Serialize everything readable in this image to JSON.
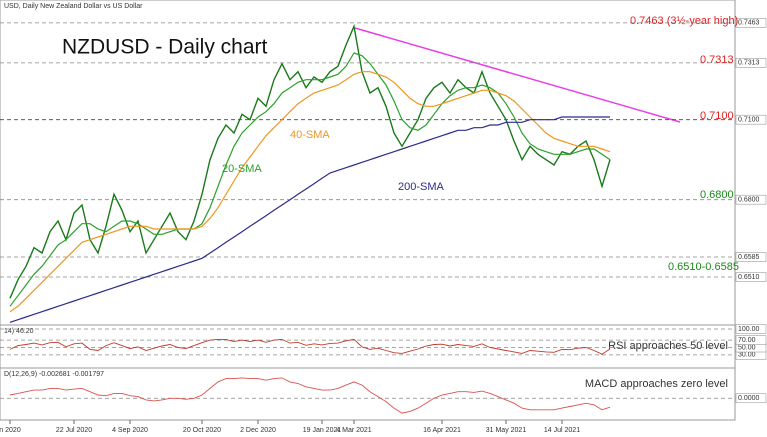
{
  "header": "USD, Daily  New Zealand Dollar vs US Dollar",
  "chart_data": [
    {
      "type": "line",
      "title": "NZDUSD - Daily chart",
      "categories": [
        "n 2020",
        null,
        null,
        null,
        null,
        null,
        null,
        null,
        "22 Jul 2020",
        null,
        null,
        null,
        null,
        null,
        null,
        "4 Sep 2020",
        null,
        null,
        null,
        null,
        null,
        null,
        null,
        null,
        "20 Oct 2020",
        null,
        null,
        null,
        null,
        null,
        null,
        "2 Dec 2020",
        null,
        null,
        null,
        null,
        null,
        null,
        null,
        "19 Jan 2021",
        null,
        null,
        null,
        "4 Mar 2021",
        null,
        null,
        null,
        null,
        null,
        null,
        null,
        null,
        null,
        null,
        "16 Apr 2021",
        null,
        null,
        null,
        null,
        null,
        null,
        null,
        "31 May 2021",
        null,
        null,
        null,
        null,
        null,
        null,
        "14 Jul 2021",
        null,
        null,
        null,
        null,
        null,
        null
      ],
      "series": [
        {
          "name": "NZDUSD",
          "color": "#1a7a1a",
          "values": [
            0.643,
            0.65,
            0.655,
            0.662,
            0.66,
            0.668,
            0.672,
            0.665,
            0.675,
            0.678,
            0.665,
            0.66,
            0.67,
            0.682,
            0.676,
            0.668,
            0.672,
            0.66,
            0.665,
            0.67,
            0.675,
            0.668,
            0.665,
            0.672,
            0.682,
            0.695,
            0.703,
            0.708,
            0.705,
            0.712,
            0.71,
            0.718,
            0.715,
            0.725,
            0.731,
            0.725,
            0.728,
            0.722,
            0.726,
            0.724,
            0.728,
            0.73,
            0.738,
            0.745,
            0.728,
            0.72,
            0.722,
            0.715,
            0.705,
            0.7,
            0.705,
            0.71,
            0.718,
            0.722,
            0.724,
            0.72,
            0.725,
            0.722,
            0.72,
            0.728,
            0.72,
            0.715,
            0.71,
            0.702,
            0.695,
            0.7,
            0.697,
            0.695,
            0.693,
            0.698,
            0.697,
            0.7,
            0.702,
            0.695,
            0.685,
            0.695
          ]
        },
        {
          "name": "20-SMA",
          "color": "#2ca02c",
          "values": [
            0.64,
            0.644,
            0.648,
            0.652,
            0.655,
            0.659,
            0.663,
            0.665,
            0.668,
            0.671,
            0.671,
            0.669,
            0.668,
            0.67,
            0.672,
            0.672,
            0.671,
            0.669,
            0.667,
            0.667,
            0.668,
            0.669,
            0.669,
            0.669,
            0.671,
            0.677,
            0.685,
            0.693,
            0.7,
            0.705,
            0.708,
            0.711,
            0.713,
            0.716,
            0.72,
            0.722,
            0.724,
            0.725,
            0.725,
            0.725,
            0.726,
            0.727,
            0.73,
            0.735,
            0.734,
            0.731,
            0.727,
            0.723,
            0.717,
            0.71,
            0.707,
            0.706,
            0.708,
            0.712,
            0.716,
            0.719,
            0.721,
            0.722,
            0.722,
            0.723,
            0.722,
            0.72,
            0.716,
            0.711,
            0.705,
            0.701,
            0.699,
            0.698,
            0.697,
            0.697,
            0.697,
            0.698,
            0.699,
            0.699,
            0.697,
            0.695
          ]
        },
        {
          "name": "40-SMA",
          "color": "#f0961e",
          "values": [
            0.638,
            0.64,
            0.643,
            0.646,
            0.649,
            0.652,
            0.655,
            0.658,
            0.661,
            0.664,
            0.665,
            0.666,
            0.667,
            0.668,
            0.669,
            0.67,
            0.67,
            0.67,
            0.669,
            0.669,
            0.669,
            0.669,
            0.669,
            0.669,
            0.67,
            0.673,
            0.677,
            0.682,
            0.687,
            0.692,
            0.696,
            0.7,
            0.704,
            0.707,
            0.71,
            0.713,
            0.716,
            0.718,
            0.72,
            0.721,
            0.722,
            0.723,
            0.725,
            0.727,
            0.728,
            0.728,
            0.727,
            0.726,
            0.724,
            0.721,
            0.718,
            0.716,
            0.715,
            0.715,
            0.716,
            0.717,
            0.718,
            0.719,
            0.72,
            0.721,
            0.721,
            0.72,
            0.719,
            0.717,
            0.714,
            0.711,
            0.708,
            0.705,
            0.703,
            0.702,
            0.701,
            0.7,
            0.7,
            0.7,
            0.699,
            0.698
          ]
        },
        {
          "name": "200-SMA",
          "color": "#2b2b8f",
          "values": [
            0.634,
            0.635,
            0.636,
            0.637,
            0.638,
            0.639,
            0.64,
            0.641,
            0.642,
            0.643,
            0.644,
            0.645,
            0.646,
            0.647,
            0.648,
            0.649,
            0.65,
            0.651,
            0.652,
            0.653,
            0.654,
            0.655,
            0.656,
            0.657,
            0.658,
            0.66,
            0.662,
            0.664,
            0.666,
            0.668,
            0.67,
            0.672,
            0.674,
            0.676,
            0.678,
            0.68,
            0.682,
            0.684,
            0.686,
            0.688,
            0.69,
            0.691,
            0.692,
            0.693,
            0.694,
            0.695,
            0.696,
            0.697,
            0.698,
            0.699,
            0.7,
            0.701,
            0.702,
            0.703,
            0.704,
            0.705,
            0.706,
            0.706,
            0.707,
            0.707,
            0.708,
            0.708,
            0.709,
            0.709,
            0.709,
            0.71,
            0.71,
            0.71,
            0.71,
            0.711,
            0.711,
            0.711,
            0.711,
            0.711,
            0.711,
            0.711
          ]
        }
      ],
      "ylim": [
        0.633,
        0.753
      ],
      "yticks": [
        {
          "value": 0.651,
          "label": "0.6510"
        },
        0.6585,
        {
          "value": 0.68,
          "label": "0.6800"
        },
        {
          "value": 0.71,
          "label": "0.7100"
        },
        0.7313,
        0.7463
      ],
      "annotations": [
        "0.7463 (3½-year high)",
        "0.7313",
        "0.7100",
        "0.6800",
        "0.6510-0.6585",
        "40-SMA",
        "20-SMA",
        "200-SMA"
      ]
    },
    {
      "type": "line",
      "title": "14) 46.20",
      "annotation": "RSI approaches 50 level",
      "color": "#c0392b",
      "values": [
        45,
        55,
        58,
        62,
        57,
        63,
        64,
        52,
        60,
        62,
        45,
        42,
        55,
        63,
        55,
        47,
        52,
        42,
        48,
        54,
        58,
        50,
        47,
        55,
        63,
        70,
        72,
        72,
        66,
        70,
        66,
        70,
        64,
        70,
        72,
        62,
        64,
        56,
        60,
        57,
        61,
        62,
        68,
        72,
        52,
        45,
        48,
        42,
        36,
        34,
        40,
        46,
        54,
        58,
        59,
        54,
        58,
        55,
        53,
        60,
        50,
        46,
        42,
        38,
        34,
        42,
        40,
        38,
        37,
        45,
        44,
        48,
        50,
        42,
        32,
        46
      ],
      "ylim": [
        0,
        100
      ],
      "yticks": [
        {
          "value": 30,
          "label": "30.00"
        },
        {
          "value": 50,
          "label": "50.00"
        },
        {
          "value": 70,
          "label": "70.00"
        },
        {
          "value": 100,
          "label": "100.00"
        }
      ]
    },
    {
      "type": "line",
      "title": "D(12,26,9) -0.002681 -0.001797",
      "annotation": "MACD approaches zero level",
      "color": "#d9534f",
      "values": [
        0.001,
        0.0015,
        0.002,
        0.0025,
        0.0025,
        0.003,
        0.003,
        0.0025,
        0.0028,
        0.003,
        0.002,
        0.001,
        0.0008,
        0.0015,
        0.0015,
        0.0008,
        0.0005,
        -0.0005,
        -0.0008,
        -0.0005,
        0,
        0,
        -0.0003,
        0,
        0.001,
        0.003,
        0.005,
        0.006,
        0.006,
        0.0062,
        0.006,
        0.006,
        0.0055,
        0.006,
        0.0062,
        0.005,
        0.0045,
        0.0035,
        0.003,
        0.0025,
        0.0025,
        0.003,
        0.004,
        0.005,
        0.004,
        0.002,
        0.0005,
        -0.001,
        -0.003,
        -0.0045,
        -0.004,
        -0.003,
        -0.0015,
        0,
        0.001,
        0.0015,
        0.002,
        0.002,
        0.0018,
        0.0022,
        0.0015,
        0.0005,
        -0.0005,
        -0.0015,
        -0.003,
        -0.0035,
        -0.0035,
        -0.0035,
        -0.0035,
        -0.003,
        -0.0025,
        -0.002,
        -0.0015,
        -0.002,
        -0.0035,
        -0.0027
      ],
      "ylim": [
        -0.006,
        0.008
      ],
      "yticks": [
        {
          "value": 0,
          "label": "0.0000"
        }
      ]
    }
  ]
}
